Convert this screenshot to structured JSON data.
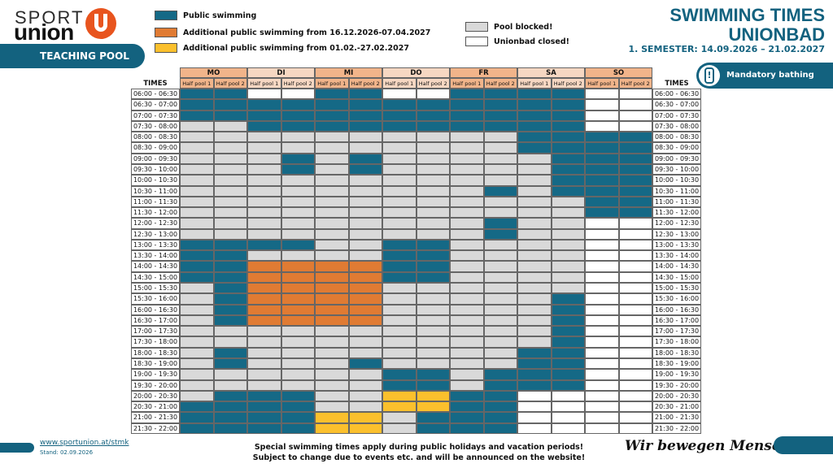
{
  "logo": {
    "line1": "SPORT",
    "line2": "union"
  },
  "teaching_pool": "TEACHING POOL",
  "legend": [
    {
      "label": "Public swimming",
      "color": "#156986"
    },
    {
      "label": "Additional public swimming from 16.12.2026-07.04.2027",
      "color": "#e07b33"
    },
    {
      "label": "Additional public swimming from 01.02.-27.02.2027",
      "color": "#fbc02d"
    },
    {
      "label": "Pool blocked!",
      "color": "#d9d9d9"
    },
    {
      "label": "Unionbad closed!",
      "color": "#ffffff"
    }
  ],
  "title": {
    "line1": "SWIMMING TIMES",
    "line2": "UNIONBAD",
    "subtitle": "1. SEMESTER: 14.09.2026 – 21.02.2027"
  },
  "cap_notice": "Mandatory bathing cap!",
  "colors": {
    "P": "#156986",
    "O": "#e07b33",
    "Y": "#fbc02d",
    "G": "#d9d9d9",
    "W": "#ffffff"
  },
  "schedule": {
    "times_label": "TIMES",
    "days": [
      "MO",
      "DI",
      "MI",
      "DO",
      "FR",
      "SA",
      "SO"
    ],
    "half_labels": [
      "Half pool 1",
      "Half pool 2"
    ],
    "times": [
      "06:00 - 06:30",
      "06:30 - 07:00",
      "07:00 - 07:30",
      "07:30 - 08:00",
      "08:00 - 08:30",
      "08:30 - 09:00",
      "09:00 - 09:30",
      "09:30 - 10:00",
      "10:00 - 10:30",
      "10:30 - 11:00",
      "11:00 - 11:30",
      "11:30 - 12:00",
      "12:00 - 12:30",
      "12:30 - 13:00",
      "13:00 - 13:30",
      "13:30 - 14:00",
      "14:00 - 14:30",
      "14:30 - 15:00",
      "15:00 - 15:30",
      "15:30 - 16:00",
      "16:00 - 16:30",
      "16:30 - 17:00",
      "17:00 - 17:30",
      "17:30 - 18:00",
      "18:00 - 18:30",
      "18:30 - 19:00",
      "19:00 - 19:30",
      "19:30 - 20:00",
      "20:00 - 20:30",
      "20:30 - 21:00",
      "21:00 - 21:30",
      "21:30 - 22:00"
    ],
    "rows": [
      "PPWWPPWWPPPPWW",
      "PPPPPPPPPPPPWW",
      "PPPPPPPPPPPPWW",
      "GGPPPPPPPPPPWW",
      "GGGGGGGGGGPPPP",
      "GGGGGGGGGGPPPP",
      "GGGPGPGGGGGPPP",
      "GGGPGPGGGGGPPP",
      "GGGGGGGGGGGPPP",
      "GGGGGGGGGPGPPP",
      "GGGGGGGGGGGGPP",
      "GGGGGGGGGGGGPP",
      "GGGGGGGGGPGGWW",
      "GGGGGGGGGPGGWW",
      "PPPPGGPPGGGGWW",
      "PPGGGGPPGGGGWW",
      "PPOOOOPPGGGGWW",
      "PPOOOOPPGGGGWW",
      "GPOOOOGGGGGGWW",
      "GPOOOOGGGGGPWW",
      "GPOOOOGGGGGPWW",
      "GPOOOOGGGGGPWW",
      "GGGGGGGGGGGPWW",
      "GGGGGGGGGGGPWW",
      "GPGGGGGGGGPPWW",
      "GPGGGPGGGGPPWW",
      "GGGGGGPPGPPPWW",
      "GGGGGGPPGPPPWW",
      "GPPPGGYYPPWWWW",
      "PPPPGGYYPPWWWW",
      "PPPPYYGPPPWWWW",
      "PPPPYYGPPPWWWW"
    ]
  },
  "footer": {
    "url": "www.sportunion.at/stmk",
    "stand": "Stand: 02.09.2026",
    "note1": "Special swimming times apply during public holidays and vacation periods!",
    "note2": "Subject to change due to events etc. and will be announced on the website!",
    "slogan": "Wir bewegen Menschen"
  }
}
